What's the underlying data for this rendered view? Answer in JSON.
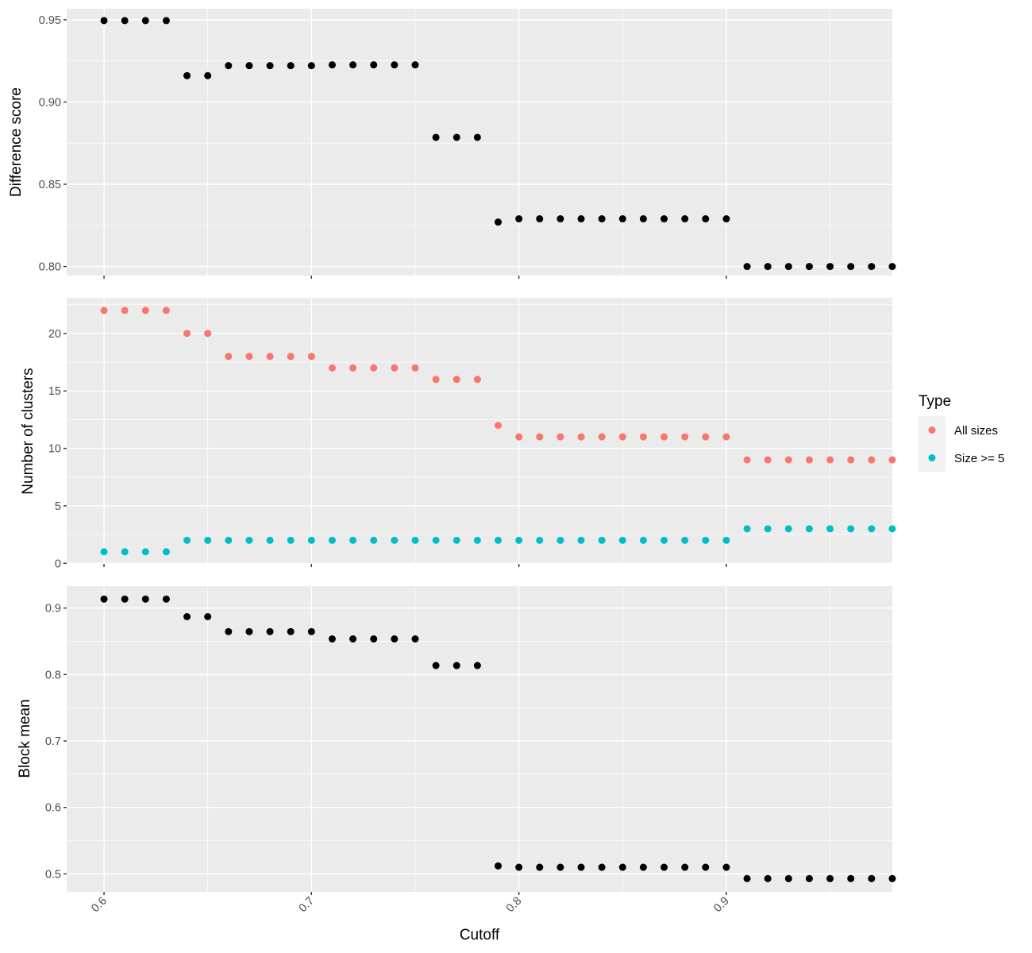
{
  "chart_data": {
    "type": "scatter",
    "xlabel": "Cutoff",
    "x_ticks": [
      "0.6",
      "0.7",
      "0.8",
      "0.9"
    ],
    "x_tick_values": [
      0.6,
      0.7,
      0.8,
      0.9
    ],
    "xlim": [
      0.582,
      0.98
    ],
    "x": [
      0.6,
      0.61,
      0.62,
      0.63,
      0.64,
      0.65,
      0.66,
      0.67,
      0.68,
      0.69,
      0.7,
      0.71,
      0.72,
      0.73,
      0.74,
      0.75,
      0.76,
      0.77,
      0.78,
      0.79,
      0.8,
      0.81,
      0.82,
      0.83,
      0.84,
      0.85,
      0.86,
      0.87,
      0.88,
      0.89,
      0.9,
      0.91,
      0.92,
      0.93,
      0.94,
      0.95,
      0.96,
      0.97,
      0.98
    ],
    "grid": true,
    "panels": [
      {
        "ylabel": "Difference score",
        "ylim": [
          0.7945,
          0.9567
        ],
        "y_ticks": [
          "0.80",
          "0.85",
          "0.90",
          "0.95"
        ],
        "y_tick_values": [
          0.8,
          0.85,
          0.9,
          0.95
        ],
        "series": [
          {
            "color": "#000000",
            "values": [
              0.9495,
              0.9495,
              0.9495,
              0.9495,
              0.916,
              0.916,
              0.9221,
              0.9221,
              0.9221,
              0.9221,
              0.9221,
              0.9226,
              0.9226,
              0.9226,
              0.9226,
              0.9226,
              0.8785,
              0.8785,
              0.8785,
              0.827,
              0.829,
              0.829,
              0.829,
              0.829,
              0.829,
              0.829,
              0.829,
              0.829,
              0.829,
              0.829,
              0.829,
              0.8,
              0.8,
              0.8,
              0.8,
              0.8,
              0.8,
              0.8,
              0.8
            ]
          }
        ]
      },
      {
        "ylabel": "Number of clusters",
        "ylim": [
          -0.05,
          23.1
        ],
        "y_ticks": [
          "0",
          "5",
          "10",
          "15",
          "20"
        ],
        "y_tick_values": [
          0,
          5,
          10,
          15,
          20
        ],
        "series": [
          {
            "name": "All sizes",
            "color": "#F8766D",
            "values": [
              22,
              22,
              22,
              22,
              20,
              20,
              18,
              18,
              18,
              18,
              18,
              17,
              17,
              17,
              17,
              17,
              16,
              16,
              16,
              12,
              11,
              11,
              11,
              11,
              11,
              11,
              11,
              11,
              11,
              11,
              11,
              9,
              9,
              9,
              9,
              9,
              9,
              9,
              9
            ]
          },
          {
            "name": "Size >= 5",
            "color": "#00BFC4",
            "values": [
              1,
              1,
              1,
              1,
              2,
              2,
              2,
              2,
              2,
              2,
              2,
              2,
              2,
              2,
              2,
              2,
              2,
              2,
              2,
              2,
              2,
              2,
              2,
              2,
              2,
              2,
              2,
              2,
              2,
              2,
              2,
              3,
              3,
              3,
              3,
              3,
              3,
              3,
              3
            ]
          }
        ]
      },
      {
        "ylabel": "Block mean",
        "ylim": [
          0.473,
          0.933
        ],
        "y_ticks": [
          "0.5",
          "0.6",
          "0.7",
          "0.8",
          "0.9"
        ],
        "y_tick_values": [
          0.5,
          0.6,
          0.7,
          0.8,
          0.9
        ],
        "series": [
          {
            "color": "#000000",
            "values": [
              0.9135,
              0.9135,
              0.9135,
              0.9135,
              0.887,
              0.887,
              0.8645,
              0.8645,
              0.8645,
              0.8645,
              0.8645,
              0.8535,
              0.8535,
              0.8535,
              0.8535,
              0.8535,
              0.8135,
              0.8135,
              0.8135,
              0.512,
              0.51,
              0.51,
              0.51,
              0.51,
              0.51,
              0.51,
              0.51,
              0.51,
              0.51,
              0.51,
              0.51,
              0.493,
              0.493,
              0.493,
              0.493,
              0.493,
              0.493,
              0.493,
              0.493
            ]
          }
        ]
      }
    ],
    "legend": {
      "title": "Type",
      "position": "right",
      "entries": [
        {
          "label": "All sizes",
          "color": "#F8766D"
        },
        {
          "label": "Size >= 5",
          "color": "#00BFC4"
        }
      ]
    }
  }
}
